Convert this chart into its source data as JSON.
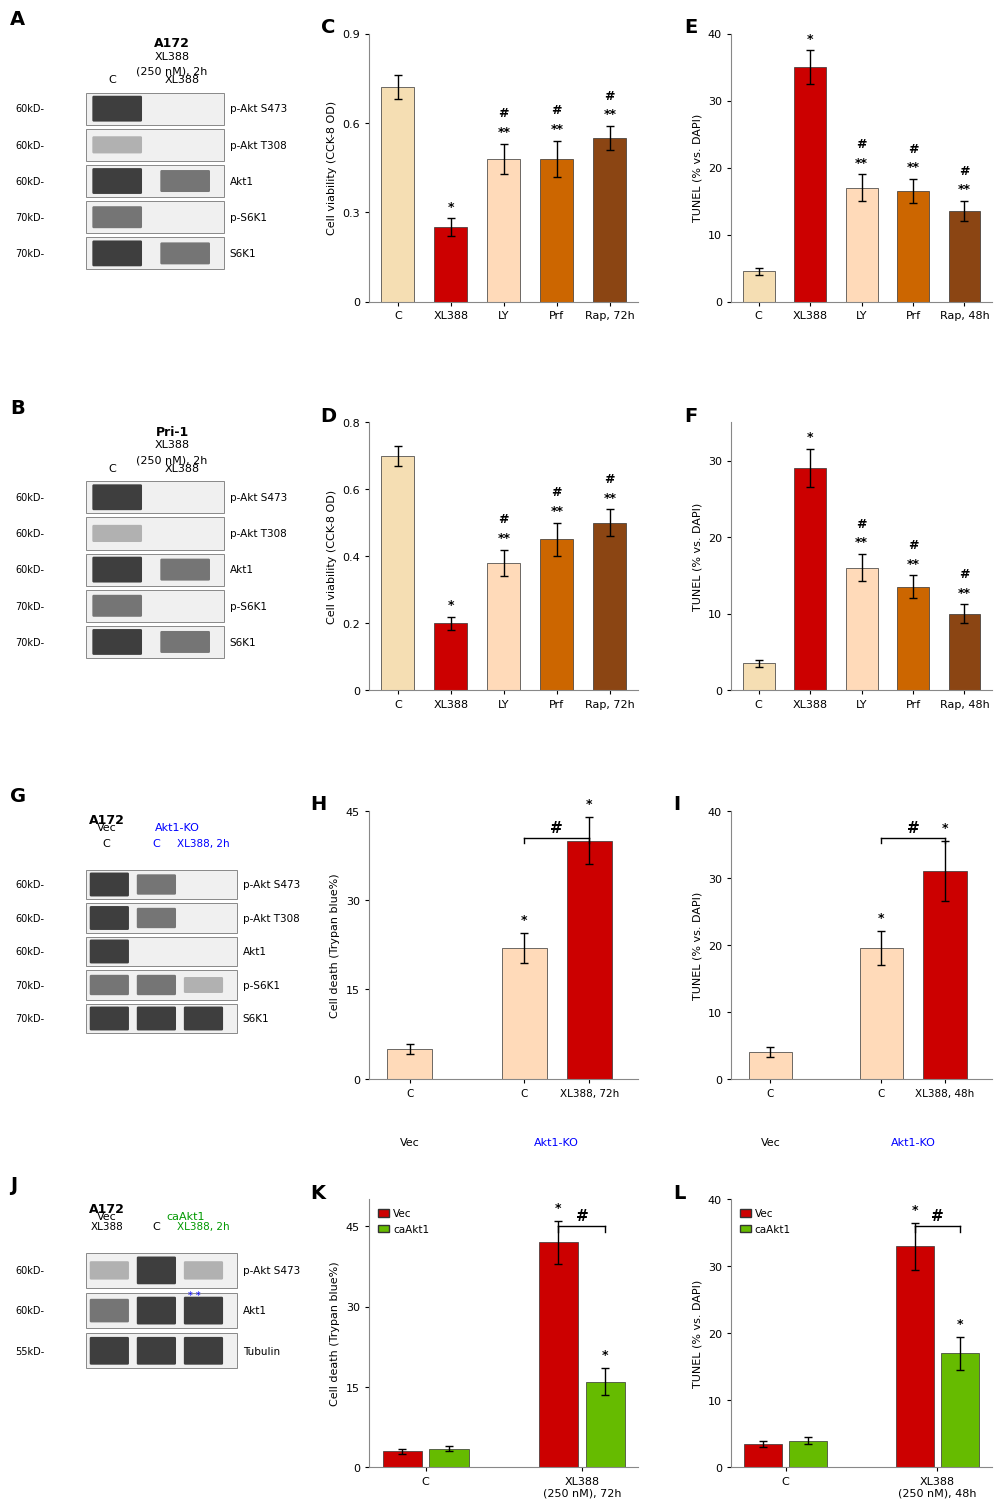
{
  "panel_C": {
    "categories": [
      "C",
      "XL388",
      "LY",
      "Prf",
      "Rap, 72h"
    ],
    "values": [
      0.72,
      0.25,
      0.48,
      0.48,
      0.55
    ],
    "errors": [
      0.04,
      0.03,
      0.05,
      0.06,
      0.04
    ],
    "colors": [
      "#F5DEB3",
      "#CC0000",
      "#FFDAB9",
      "#CC6600",
      "#8B4513"
    ],
    "ylabel": "Cell viability (CCK-8 OD)",
    "ylim": [
      0,
      0.9
    ],
    "yticks": [
      0.0,
      0.3,
      0.6,
      0.9
    ],
    "yticklabels": [
      "0",
      "0.3",
      "0.6",
      "0.9"
    ],
    "stars": [
      "",
      "*",
      "**\n#",
      "**\n#",
      "**\n#"
    ],
    "label": "C"
  },
  "panel_D": {
    "categories": [
      "C",
      "XL388",
      "LY",
      "Prf",
      "Rap, 72h"
    ],
    "values": [
      0.7,
      0.2,
      0.38,
      0.45,
      0.5
    ],
    "errors": [
      0.03,
      0.02,
      0.04,
      0.05,
      0.04
    ],
    "colors": [
      "#F5DEB3",
      "#CC0000",
      "#FFDAB9",
      "#CC6600",
      "#8B4513"
    ],
    "ylabel": "Cell viability (CCK-8 OD)",
    "ylim": [
      0,
      0.8
    ],
    "yticks": [
      0.0,
      0.2,
      0.4,
      0.6,
      0.8
    ],
    "yticklabels": [
      "0",
      "0.2",
      "0.4",
      "0.6",
      "0.8"
    ],
    "stars": [
      "",
      "*",
      "**\n#",
      "**\n#",
      "**\n#"
    ],
    "label": "D"
  },
  "panel_E": {
    "categories": [
      "C",
      "XL388",
      "LY",
      "Prf",
      "Rap, 48h"
    ],
    "values": [
      4.5,
      35.0,
      17.0,
      16.5,
      13.5
    ],
    "errors": [
      0.5,
      2.5,
      2.0,
      1.8,
      1.5
    ],
    "colors": [
      "#F5DEB3",
      "#CC0000",
      "#FFDAB9",
      "#CC6600",
      "#8B4513"
    ],
    "ylabel": "TUNEL (% vs. DAPI)",
    "ylim": [
      0,
      40
    ],
    "yticks": [
      0,
      10,
      20,
      30,
      40
    ],
    "yticklabels": [
      "0",
      "10",
      "20",
      "30",
      "40"
    ],
    "stars": [
      "",
      "*",
      "**\n#",
      "**\n#",
      "**\n#"
    ],
    "label": "E"
  },
  "panel_F": {
    "categories": [
      "C",
      "XL388",
      "LY",
      "Prf",
      "Rap, 48h"
    ],
    "values": [
      3.5,
      29.0,
      16.0,
      13.5,
      10.0
    ],
    "errors": [
      0.5,
      2.5,
      1.8,
      1.5,
      1.2
    ],
    "colors": [
      "#F5DEB3",
      "#CC0000",
      "#FFDAB9",
      "#CC6600",
      "#8B4513"
    ],
    "ylabel": "TUNEL (% vs. DAPI)",
    "ylim": [
      0,
      35
    ],
    "yticks": [
      0,
      10,
      20,
      30
    ],
    "yticklabels": [
      "0",
      "10",
      "20",
      "30"
    ],
    "stars": [
      "",
      "*",
      "**\n#",
      "**\n#",
      "**\n#"
    ],
    "label": "F"
  },
  "panel_H": {
    "categories": [
      "C",
      "C",
      "XL388, 72h"
    ],
    "values": [
      5.0,
      22.0,
      40.0
    ],
    "errors": [
      0.8,
      2.5,
      4.0
    ],
    "colors": [
      "#FFDAB9",
      "#FFDAB9",
      "#CC0000"
    ],
    "ylabel": "Cell death (Trypan blue%)",
    "ylim": [
      0,
      45
    ],
    "yticks": [
      0,
      15,
      30,
      45
    ],
    "yticklabels": [
      "0",
      "15",
      "30",
      "45"
    ],
    "stars": [
      "",
      "*",
      "*"
    ],
    "hash_bracket": true,
    "xlabel_groups": [
      "Vec",
      "Akt1-KO"
    ],
    "label": "H"
  },
  "panel_I": {
    "categories": [
      "C",
      "C",
      "XL388, 48h"
    ],
    "values": [
      4.0,
      19.5,
      31.0
    ],
    "errors": [
      0.8,
      2.5,
      4.5
    ],
    "colors": [
      "#FFDAB9",
      "#FFDAB9",
      "#CC0000"
    ],
    "ylabel": "TUNEL (% vs. DAPI)",
    "ylim": [
      0,
      40
    ],
    "yticks": [
      0,
      10,
      20,
      30,
      40
    ],
    "yticklabels": [
      "0",
      "10",
      "20",
      "30",
      "40"
    ],
    "stars": [
      "",
      "*",
      "*"
    ],
    "hash_bracket": true,
    "xlabel_groups": [
      "Vec",
      "Akt1-KO"
    ],
    "label": "I"
  },
  "panel_K": {
    "values": [
      [
        3.0,
        3.5
      ],
      [
        42.0,
        16.0
      ]
    ],
    "errors": [
      [
        0.5,
        0.5
      ],
      [
        4.0,
        2.5
      ]
    ],
    "colors": [
      "#CC0000",
      "#66BB00"
    ],
    "legend": [
      "Vec",
      "caAkt1"
    ],
    "ylabel": "Cell death (Trypan blue%)",
    "ylim": [
      0,
      50
    ],
    "yticks": [
      0,
      15,
      30,
      45
    ],
    "yticklabels": [
      "0",
      "15",
      "30",
      "45"
    ],
    "stars_vec": [
      "",
      "*"
    ],
    "stars_caakt1": [
      "",
      "*"
    ],
    "hash_bracket": true,
    "xlabel": [
      "C",
      "XL388\n(250 nM), 72h"
    ],
    "label": "K"
  },
  "panel_L": {
    "values": [
      [
        3.5,
        4.0
      ],
      [
        33.0,
        17.0
      ]
    ],
    "errors": [
      [
        0.5,
        0.5
      ],
      [
        3.5,
        2.5
      ]
    ],
    "colors": [
      "#CC0000",
      "#66BB00"
    ],
    "legend": [
      "Vec",
      "caAkt1"
    ],
    "ylabel": "TUNEL (% vs. DAPI)",
    "ylim": [
      0,
      40
    ],
    "yticks": [
      0,
      10,
      20,
      30,
      40
    ],
    "yticklabels": [
      "0",
      "10",
      "20",
      "30",
      "40"
    ],
    "stars_vec": [
      "",
      "*"
    ],
    "stars_caakt1": [
      "",
      "*"
    ],
    "hash_bracket": true,
    "xlabel": [
      "C",
      "XL388\n(250 nM), 48h"
    ],
    "label": "L"
  }
}
